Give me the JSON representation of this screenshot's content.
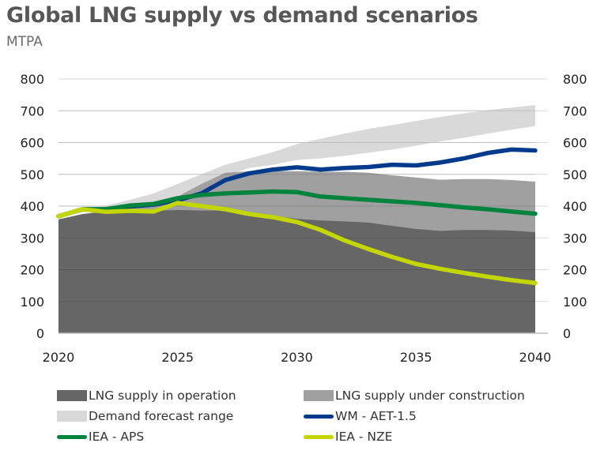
{
  "chart_data": {
    "type": "area",
    "title": "Global LNG supply vs demand scenarios",
    "subtitle": "MTPA",
    "xlabel": "",
    "ylabel": "MTPA",
    "xlim": [
      2020,
      2040
    ],
    "ylim": [
      0,
      800
    ],
    "x_ticks": [
      "2020",
      "2025",
      "2030",
      "2035",
      "2040"
    ],
    "y_ticks": [
      "0",
      "100",
      "200",
      "300",
      "400",
      "500",
      "600",
      "700",
      "800"
    ],
    "secondary_y_ticks": [
      "0",
      "100",
      "200",
      "300",
      "400",
      "500",
      "600",
      "700",
      "800"
    ],
    "grid": true,
    "legend_position": "bottom",
    "x": [
      2020,
      2021,
      2022,
      2023,
      2024,
      2025,
      2026,
      2027,
      2028,
      2029,
      2030,
      2031,
      2032,
      2033,
      2034,
      2035,
      2036,
      2037,
      2038,
      2039,
      2040
    ],
    "series": [
      {
        "name": "LNG supply in operation",
        "kind": "area",
        "color": "#666666",
        "values": [
          358,
          375,
          382,
          382,
          385,
          388,
          386,
          386,
          380,
          370,
          360,
          355,
          352,
          348,
          338,
          328,
          322,
          325,
          325,
          323,
          318
        ]
      },
      {
        "name": "LNG supply under construction",
        "kind": "area-stack-top",
        "color": "#a0a0a0",
        "values": [
          358,
          375,
          385,
          390,
          400,
          430,
          470,
          505,
          510,
          510,
          510,
          508,
          508,
          505,
          497,
          490,
          483,
          485,
          485,
          482,
          477
        ]
      },
      {
        "name": "Demand forecast range",
        "kind": "range",
        "color": "#d9d9d9",
        "low": [
          365,
          380,
          388,
          395,
          410,
          432,
          462,
          495,
          520,
          530,
          545,
          550,
          558,
          568,
          578,
          590,
          603,
          615,
          628,
          640,
          652
        ],
        "high": [
          368,
          385,
          402,
          420,
          440,
          470,
          500,
          530,
          550,
          570,
          595,
          612,
          628,
          643,
          655,
          668,
          680,
          692,
          702,
          710,
          718
        ]
      },
      {
        "name": "WM - AET-1.5",
        "kind": "line",
        "color": "#003a8c",
        "values": [
          368,
          390,
          390,
          398,
          405,
          418,
          440,
          482,
          503,
          515,
          522,
          515,
          520,
          523,
          530,
          528,
          537,
          550,
          567,
          578,
          575
        ]
      },
      {
        "name": "IEA - APS",
        "kind": "line",
        "color": "#00843d",
        "values": [
          368,
          390,
          390,
          402,
          407,
          425,
          435,
          440,
          443,
          446,
          444,
          430,
          425,
          420,
          415,
          410,
          403,
          396,
          390,
          383,
          376
        ]
      },
      {
        "name": "IEA - NZE",
        "kind": "line",
        "color": "#c4d600",
        "values": [
          368,
          390,
          382,
          385,
          383,
          410,
          400,
          390,
          375,
          365,
          350,
          325,
          292,
          265,
          240,
          218,
          203,
          190,
          178,
          167,
          158
        ]
      }
    ]
  },
  "legend": {
    "items": [
      {
        "label": "LNG supply in operation",
        "type": "box",
        "color": "#666666"
      },
      {
        "label": "LNG supply under construction",
        "type": "box",
        "color": "#a0a0a0"
      },
      {
        "label": "Demand forecast range",
        "type": "box",
        "color": "#d9d9d9"
      },
      {
        "label": "WM - AET-1.5",
        "type": "line",
        "color": "#003a8c"
      },
      {
        "label": "IEA - APS",
        "type": "line",
        "color": "#00843d"
      },
      {
        "label": "IEA - NZE",
        "type": "line",
        "color": "#c4d600"
      }
    ]
  }
}
